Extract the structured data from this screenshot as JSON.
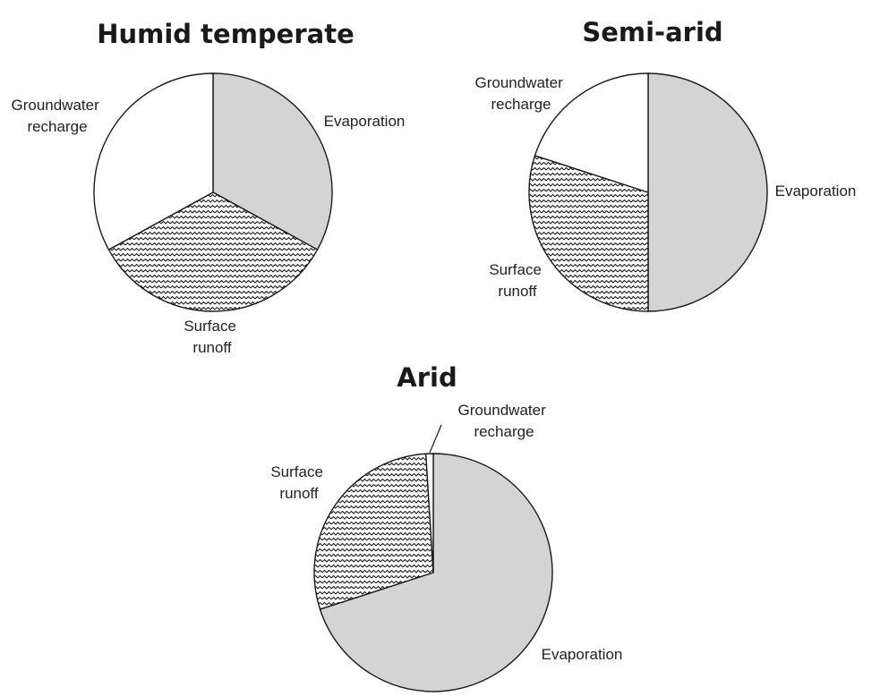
{
  "colors": {
    "evaporation": "#d4d4d4",
    "groundwater": "#ffffff",
    "runoff_pattern": "zigzag",
    "stroke": "#1a1a1a"
  },
  "chart_data": [
    {
      "type": "pie",
      "title": "Humid temperate",
      "slices": [
        {
          "label": [
            "Evaporation"
          ],
          "value": 33,
          "fill": "evaporation"
        },
        {
          "label": [
            "Surface",
            "runoff"
          ],
          "value": 34,
          "fill": "runoff"
        },
        {
          "label": [
            "Groundwater",
            "recharge"
          ],
          "value": 33,
          "fill": "groundwater"
        }
      ]
    },
    {
      "type": "pie",
      "title": "Semi-arid",
      "slices": [
        {
          "label": [
            "Evaporation"
          ],
          "value": 50,
          "fill": "evaporation"
        },
        {
          "label": [
            "Surface",
            "runoff"
          ],
          "value": 30,
          "fill": "runoff"
        },
        {
          "label": [
            "Groundwater",
            "recharge"
          ],
          "value": 20,
          "fill": "groundwater"
        }
      ]
    },
    {
      "type": "pie",
      "title": "Arid",
      "slices": [
        {
          "label": [
            "Evaporation"
          ],
          "value": 70,
          "fill": "evaporation"
        },
        {
          "label": [
            "Surface",
            "runoff"
          ],
          "value": 29,
          "fill": "runoff"
        },
        {
          "label": [
            "Groundwater",
            "recharge"
          ],
          "value": 1,
          "fill": "groundwater"
        }
      ]
    }
  ]
}
